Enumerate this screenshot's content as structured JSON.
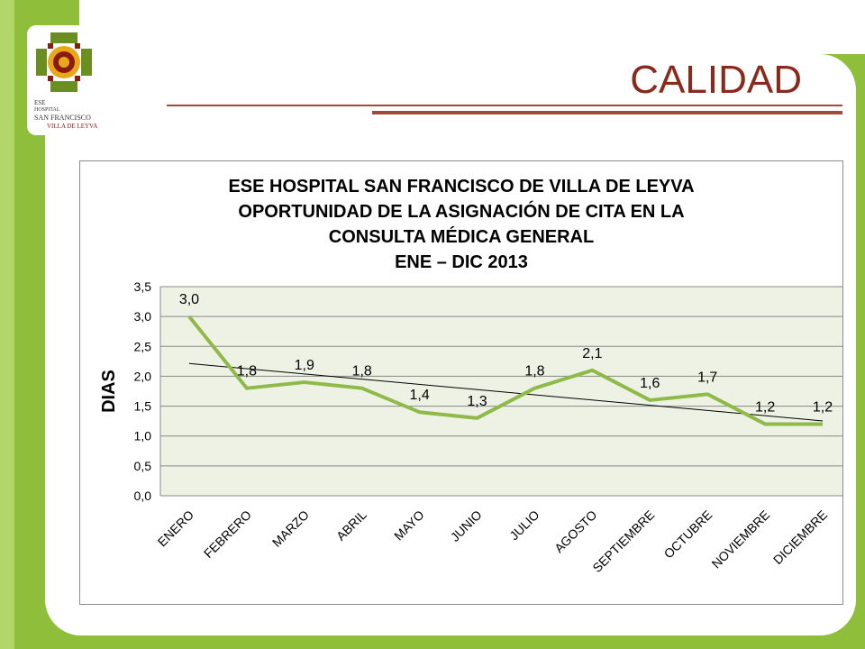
{
  "slide": {
    "title": "CALIDAD",
    "logo_text": [
      "ESE",
      "HOSPITAL",
      "SAN FRANCISCO",
      "VILLA DE LEYVA"
    ]
  },
  "colors": {
    "background_green": "#8fbf3a",
    "title_color": "#8a2a1c",
    "line_color": "#8fba4a",
    "trend_color": "#000000",
    "plot_bg": "#eef2e4"
  },
  "chart_data": {
    "type": "line",
    "title_lines": [
      "ESE HOSPITAL SAN FRANCISCO DE VILLA DE LEYVA",
      "OPORTUNIDAD DE LA ASIGNACIÓN DE CITA EN LA",
      "CONSULTA MÉDICA GENERAL",
      "ENE – DIC 2013"
    ],
    "ylabel": "DIAS",
    "xlabel": "",
    "categories": [
      "ENERO",
      "FEBRERO",
      "MARZO",
      "ABRIL",
      "MAYO",
      "JUNIO",
      "JULIO",
      "AGOSTO",
      "SEPTIEMBRE",
      "OCTUBRE",
      "NOVIEMBRE",
      "DICIEMBRE"
    ],
    "values": [
      3.0,
      1.8,
      1.9,
      1.8,
      1.4,
      1.3,
      1.8,
      2.1,
      1.6,
      1.7,
      1.2,
      1.2
    ],
    "labels": [
      "3,0",
      "1,8",
      "1,9",
      "1,8",
      "1,4",
      "1,3",
      "1,8",
      "2,1",
      "1,6",
      "1,7",
      "1,2",
      "1,2"
    ],
    "yticks": [
      "0,0",
      "0,5",
      "1,0",
      "1,5",
      "2,0",
      "2,5",
      "3,0",
      "3,5"
    ],
    "ylim": [
      0,
      3.5
    ],
    "trendline": "linear",
    "grid": true,
    "legend": "none"
  }
}
